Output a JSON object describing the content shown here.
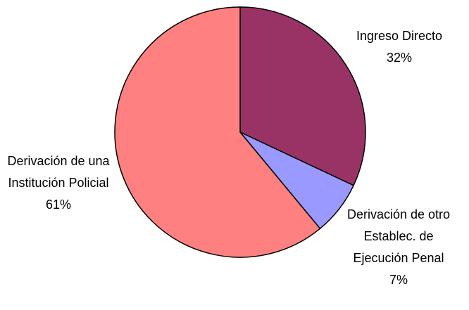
{
  "chart_data": {
    "type": "pie",
    "categories": [
      "Ingreso Directo",
      "Derivación de otro Establec. de Ejecución Penal",
      "Derivación de una Institución Policial"
    ],
    "values": [
      32,
      7,
      61
    ],
    "value_labels": [
      "32%",
      "7%",
      "61%"
    ],
    "colors": [
      "#993366",
      "#9999ff",
      "#ff8080"
    ]
  }
}
